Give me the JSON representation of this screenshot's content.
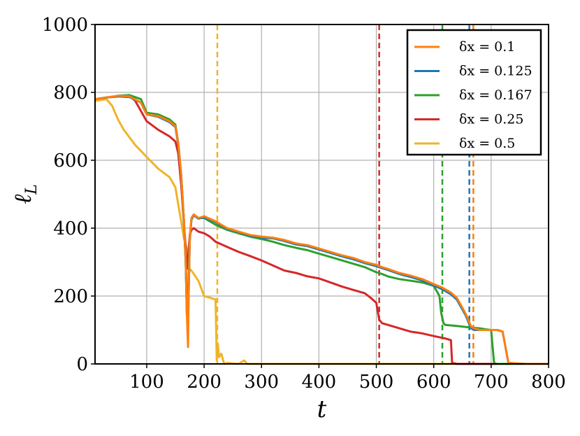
{
  "chart_data": {
    "type": "line",
    "title": "",
    "xlabel": "t",
    "ylabel": "ℓ_L",
    "xlim": [
      10,
      800
    ],
    "ylim": [
      0,
      1000
    ],
    "xticks": [
      100,
      200,
      300,
      400,
      500,
      600,
      700,
      800
    ],
    "yticks": [
      0,
      200,
      400,
      600,
      800,
      1000
    ],
    "grid": true,
    "legend_position": "top-right",
    "series": [
      {
        "name": "δx = 0.1",
        "color": "#ff7f0e",
        "vline_x": 669,
        "x": [
          10,
          30,
          50,
          70,
          90,
          100,
          120,
          140,
          150,
          155,
          160,
          165,
          168,
          170,
          172,
          173,
          175,
          178,
          182,
          190,
          200,
          220,
          240,
          260,
          280,
          300,
          320,
          340,
          360,
          380,
          400,
          420,
          440,
          460,
          480,
          500,
          510,
          520,
          540,
          560,
          580,
          600,
          615,
          630,
          640,
          650,
          655,
          660,
          665,
          670,
          680,
          700,
          710,
          715,
          720,
          730,
          760,
          800
        ],
        "y": [
          780,
          785,
          790,
          788,
          770,
          735,
          730,
          715,
          700,
          650,
          560,
          420,
          300,
          150,
          50,
          200,
          370,
          430,
          440,
          430,
          435,
          420,
          400,
          390,
          380,
          375,
          372,
          365,
          355,
          350,
          340,
          330,
          320,
          312,
          300,
          292,
          285,
          280,
          268,
          260,
          250,
          235,
          225,
          210,
          195,
          165,
          150,
          130,
          110,
          105,
          100,
          100,
          100,
          98,
          95,
          3,
          0,
          0
        ]
      },
      {
        "name": "δx = 0.125",
        "color": "#1f77b4",
        "vline_x": 662,
        "x": [
          10,
          30,
          50,
          70,
          90,
          100,
          120,
          140,
          150,
          155,
          160,
          165,
          168,
          170,
          172,
          173,
          175,
          178,
          182,
          190,
          200,
          220,
          240,
          260,
          280,
          300,
          320,
          340,
          360,
          380,
          400,
          420,
          440,
          460,
          480,
          500,
          510,
          520,
          540,
          560,
          580,
          600,
          615,
          630,
          640,
          650,
          655,
          660,
          665,
          670,
          680,
          700,
          710,
          715,
          720,
          730,
          760,
          800
        ],
        "y": [
          780,
          785,
          788,
          786,
          770,
          735,
          728,
          712,
          698,
          645,
          555,
          415,
          295,
          145,
          120,
          195,
          365,
          425,
          438,
          428,
          432,
          418,
          398,
          388,
          378,
          372,
          370,
          362,
          352,
          347,
          337,
          327,
          317,
          308,
          297,
          288,
          282,
          277,
          265,
          256,
          246,
          231,
          220,
          205,
          190,
          160,
          145,
          125,
          105,
          100,
          100,
          100,
          100,
          98,
          95,
          3,
          0,
          0
        ]
      },
      {
        "name": "δx = 0.167",
        "color": "#2ca02c",
        "vline_x": 615,
        "x": [
          10,
          30,
          50,
          70,
          90,
          100,
          120,
          140,
          150,
          155,
          160,
          165,
          168,
          170,
          172,
          175,
          178,
          182,
          190,
          200,
          220,
          240,
          260,
          280,
          300,
          320,
          340,
          360,
          380,
          400,
          420,
          440,
          460,
          480,
          500,
          510,
          520,
          540,
          560,
          580,
          600,
          610,
          613,
          617,
          620,
          640,
          660,
          680,
          690,
          700,
          705,
          710,
          760,
          800
        ],
        "y": [
          780,
          785,
          790,
          792,
          780,
          740,
          735,
          720,
          705,
          650,
          560,
          420,
          300,
          150,
          200,
          370,
          430,
          440,
          430,
          430,
          410,
          395,
          385,
          375,
          368,
          360,
          350,
          342,
          335,
          325,
          315,
          305,
          295,
          285,
          270,
          265,
          258,
          250,
          245,
          240,
          230,
          200,
          150,
          120,
          115,
          112,
          108,
          105,
          102,
          100,
          3,
          0,
          0,
          0
        ]
      },
      {
        "name": "δx = 0.25",
        "color": "#d62728",
        "vline_x": 505,
        "x": [
          10,
          30,
          50,
          70,
          80,
          90,
          100,
          120,
          140,
          150,
          155,
          160,
          165,
          168,
          170,
          172,
          175,
          178,
          182,
          190,
          200,
          210,
          220,
          240,
          260,
          280,
          300,
          320,
          340,
          360,
          380,
          400,
          420,
          440,
          460,
          480,
          490,
          500,
          503,
          505,
          510,
          520,
          540,
          560,
          580,
          600,
          620,
          630,
          632,
          640,
          760,
          800
        ],
        "y": [
          780,
          785,
          788,
          790,
          775,
          745,
          715,
          690,
          670,
          655,
          620,
          530,
          410,
          340,
          280,
          310,
          380,
          395,
          400,
          390,
          385,
          375,
          360,
          345,
          330,
          318,
          305,
          290,
          275,
          268,
          258,
          252,
          240,
          228,
          218,
          208,
          195,
          180,
          150,
          130,
          120,
          115,
          105,
          95,
          90,
          82,
          75,
          70,
          3,
          0,
          0,
          0
        ]
      },
      {
        "name": "δx = 0.5",
        "color": "#f0b428",
        "vline_x": 223,
        "x": [
          10,
          30,
          40,
          50,
          60,
          80,
          100,
          120,
          140,
          150,
          155,
          160,
          165,
          170,
          172,
          175,
          180,
          190,
          200,
          210,
          220,
          222,
          224,
          226,
          230,
          235,
          240,
          260,
          270,
          275,
          280,
          300,
          400,
          800
        ],
        "y": [
          775,
          780,
          760,
          720,
          690,
          645,
          610,
          575,
          550,
          520,
          470,
          420,
          370,
          340,
          290,
          280,
          270,
          245,
          200,
          195,
          190,
          10,
          60,
          20,
          30,
          0,
          3,
          0,
          10,
          0,
          0,
          0,
          0,
          0
        ]
      }
    ]
  }
}
